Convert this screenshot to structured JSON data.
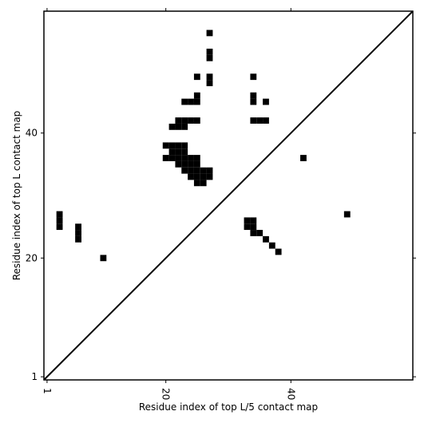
{
  "chart_data": {
    "type": "heatmap",
    "xlabel": "Residue index of top L/5 contact map",
    "ylabel": "Residue index of top L contact map",
    "xlim": [
      0.5,
      59.5
    ],
    "ylim": [
      0.5,
      59.5
    ],
    "xticks": [
      1,
      20,
      40
    ],
    "yticks": [
      1,
      20,
      40
    ],
    "color": "#000000",
    "x": [
      27,
      27,
      27,
      25,
      27,
      27,
      34,
      34,
      34,
      36,
      25,
      23,
      24,
      25,
      22,
      23,
      24,
      25,
      34,
      35,
      36,
      21,
      22,
      23,
      20,
      21,
      22,
      23,
      21,
      22,
      23,
      20,
      21,
      22,
      23,
      24,
      25,
      22,
      23,
      24,
      25,
      23,
      24,
      25,
      26,
      27,
      24,
      25,
      26,
      27,
      25,
      26,
      3,
      3,
      3,
      6,
      6,
      6,
      10,
      42,
      49,
      33,
      34,
      33,
      34,
      34,
      35,
      36,
      37,
      38
    ],
    "y": [
      56,
      53,
      52,
      49,
      49,
      48,
      49,
      46,
      45,
      45,
      46,
      45,
      45,
      45,
      42,
      42,
      42,
      42,
      42,
      42,
      42,
      41,
      41,
      41,
      38,
      38,
      38,
      38,
      37,
      37,
      37,
      36,
      36,
      36,
      36,
      36,
      36,
      35,
      35,
      35,
      35,
      34,
      34,
      34,
      34,
      34,
      33,
      33,
      33,
      33,
      32,
      32,
      27,
      26,
      25,
      25,
      24,
      23,
      20,
      36,
      27,
      26,
      26,
      25,
      25,
      24,
      24,
      23,
      22,
      21
    ]
  }
}
